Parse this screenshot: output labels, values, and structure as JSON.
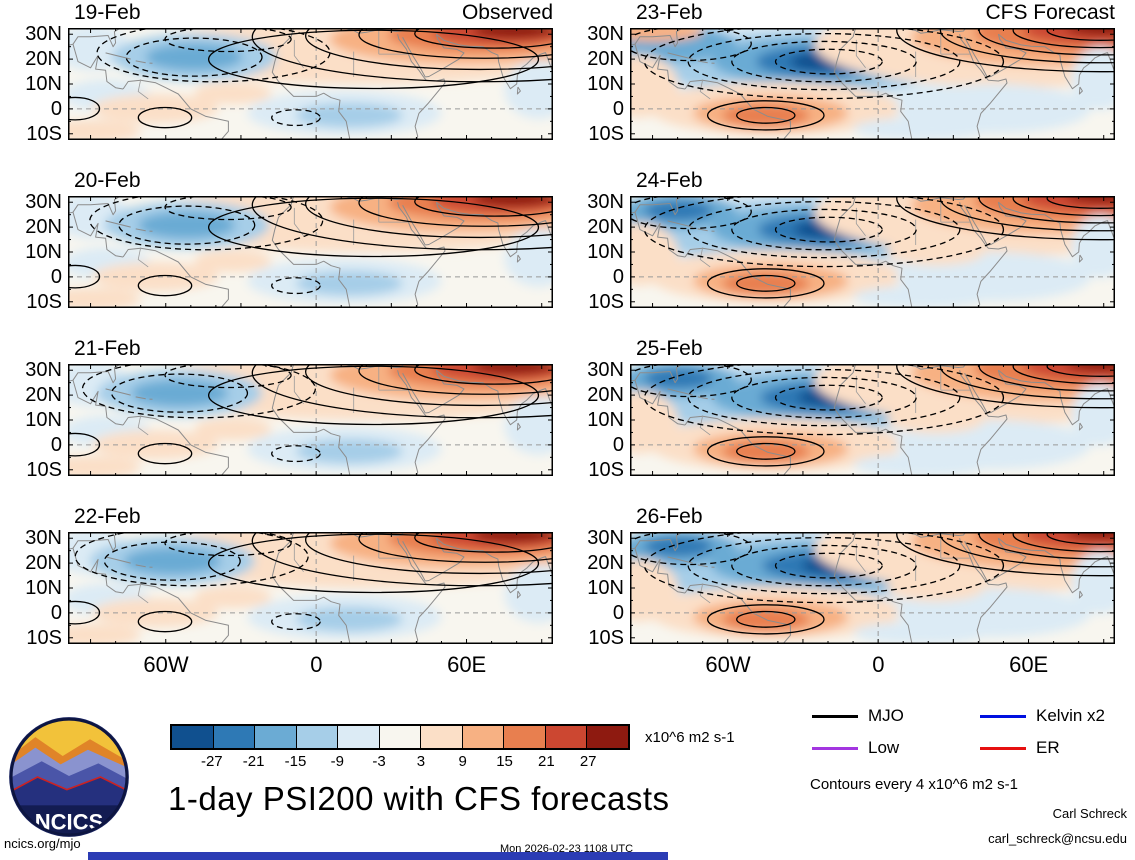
{
  "figure": {
    "title": "1-day PSI200 with CFS forecasts",
    "contour_note": "Contours every 4 x10^6 m2 s-1",
    "credit": "Carl Schreck",
    "email": "carl_schreck@ncsu.edu",
    "site": "ncics.org/mjo",
    "timestamp": "Mon 2026-02-23 1108 UTC",
    "logo_text": "NCICS"
  },
  "panels": [
    {
      "date": "19-Feb",
      "header": "Observed"
    },
    {
      "date": "20-Feb"
    },
    {
      "date": "21-Feb"
    },
    {
      "date": "22-Feb"
    },
    {
      "date": "23-Feb",
      "header": "CFS Forecast"
    },
    {
      "date": "24-Feb"
    },
    {
      "date": "25-Feb"
    },
    {
      "date": "26-Feb"
    }
  ],
  "axes": {
    "lat_labels": [
      "30N",
      "20N",
      "10N",
      "0",
      "10S"
    ],
    "lon_labels": [
      "60W",
      "0",
      "60E"
    ]
  },
  "colorbar": {
    "unit": "x10^6 m2 s-1",
    "tick_labels": [
      "-27",
      "-21",
      "-15",
      "-9",
      "-3",
      "3",
      "9",
      "15",
      "21",
      "27"
    ],
    "colors": [
      "#10508f",
      "#2e79b5",
      "#6babd4",
      "#a6cee8",
      "#dcebf5",
      "#f8f6ef",
      "#fbdfc7",
      "#f7b183",
      "#e87f4f",
      "#cc4731",
      "#8e1a10"
    ]
  },
  "legend": {
    "items": [
      {
        "label": "MJO",
        "color": "#000000"
      },
      {
        "label": "Kelvin x2",
        "color": "#0010e0"
      },
      {
        "label": "Low",
        "color": "#a335e0"
      },
      {
        "label": "ER",
        "color": "#e61010"
      }
    ]
  },
  "chart_data": {
    "type": "heatmap",
    "subtype": "filled-contour anomaly maps, 2 columns x 4 rows",
    "title": "1-day PSI200 with CFS forecasts",
    "variable": "200-hPa streamfunction anomaly (PSI200)",
    "units": "x10^6 m2 s-1",
    "shading_levels": [
      -27,
      -21,
      -15,
      -9,
      -3,
      3,
      9,
      15,
      21,
      27
    ],
    "contour_interval": 4,
    "contour_interval_note": "Contours every 4 x10^6 m2 s-1",
    "columns": [
      {
        "header": "Observed",
        "panels": [
          "19-Feb",
          "20-Feb",
          "21-Feb",
          "22-Feb"
        ]
      },
      {
        "header": "CFS Forecast",
        "panels": [
          "23-Feb",
          "24-Feb",
          "25-Feb",
          "26-Feb"
        ]
      }
    ],
    "y_axis": {
      "ticks": [
        "30N",
        "20N",
        "10N",
        "0",
        "10S"
      ]
    },
    "x_axis": {
      "ticks": [
        "60W",
        "0",
        "60E"
      ]
    },
    "legend_entries": [
      "MJO",
      "Kelvin x2",
      "Low",
      "ER"
    ],
    "pattern_summary": "Observed panels: positive (red) anomaly maximum over South Asia / 20-30N with solid contours, negative (blue) anomaly with dashed contours over subtropical Atlantic. CFS forecast panels: strengthening negative (dark blue, dashed) anomaly over West Africa / tropical Atlantic and strong positive (dark red, solid) anomaly in the northeast corner."
  }
}
